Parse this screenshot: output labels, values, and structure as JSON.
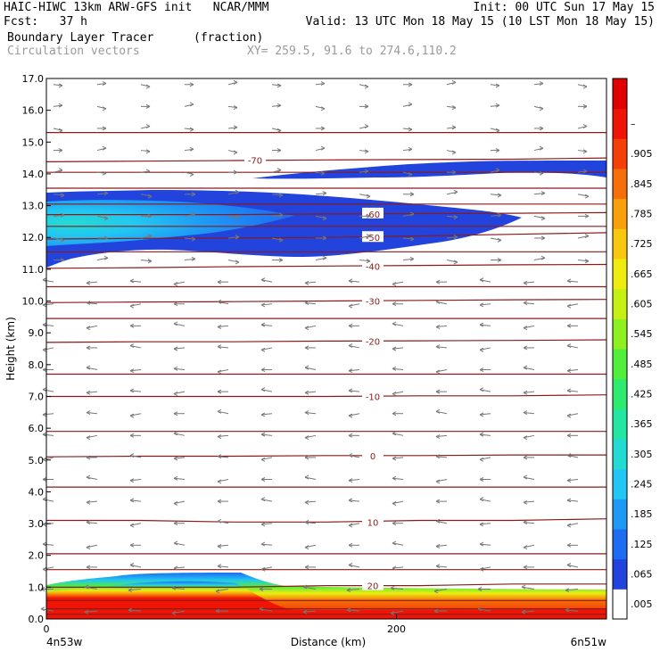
{
  "header": {
    "line1_left": "HAIC-HIWC 13km ARW-GFS init   NCAR/MMM",
    "line1_right": "Init: 00 UTC Sun 17 May 15",
    "line2_left": "Fcst:   37 h",
    "line2_right": "Valid: 13 UTC Mon 18 May 15 (10 LST Mon 18 May 15)",
    "line3_left": "Boundary Layer Tracer",
    "line3_units": "(fraction)",
    "line4_left": "Circulation vectors",
    "line4_xy": "XY= 259.5, 91.6 to 274.6,110.2"
  },
  "chart_data": {
    "type": "heatmap",
    "xlabel": "Distance (km)",
    "ylabel": "Height (km)",
    "xlim": [
      0,
      320
    ],
    "ylim": [
      0,
      17
    ],
    "x_ticks": [
      {
        "value": 0,
        "label": "0"
      },
      {
        "value": 200,
        "label": "200"
      }
    ],
    "x_endpoint_labels": {
      "left": "4n53w",
      "right": "6n51w"
    },
    "y_ticks": [
      {
        "value": 0,
        "label": "0.0"
      },
      {
        "value": 1,
        "label": "1.0"
      },
      {
        "value": 2,
        "label": "2.0"
      },
      {
        "value": 3,
        "label": "3.0"
      },
      {
        "value": 4,
        "label": "4.0"
      },
      {
        "value": 5,
        "label": "5.0"
      },
      {
        "value": 6,
        "label": "6.0"
      },
      {
        "value": 7,
        "label": "7.0"
      },
      {
        "value": 8,
        "label": "8.0"
      },
      {
        "value": 9,
        "label": "9.0"
      },
      {
        "value": 10,
        "label": "10.0"
      },
      {
        "value": 11,
        "label": "11.0"
      },
      {
        "value": 12,
        "label": "12.0"
      },
      {
        "value": 13,
        "label": "13.0"
      },
      {
        "value": 14,
        "label": "14.0"
      },
      {
        "value": 15,
        "label": "15.0"
      },
      {
        "value": 16,
        "label": "16.0"
      },
      {
        "value": 17,
        "label": "17.0"
      }
    ],
    "colorbar": {
      "labels": [
        ".005",
        ".065",
        ".125",
        ".185",
        ".245",
        ".305",
        ".365",
        ".425",
        ".485",
        ".545",
        ".605",
        ".665",
        ".725",
        ".785",
        ".845",
        ".905",
        "–"
      ],
      "colors": [
        "#ffffff",
        "#2244dd",
        "#1e6cf0",
        "#1e9af5",
        "#22c6f2",
        "#22dcd2",
        "#22e6a2",
        "#2eea6e",
        "#52ee3c",
        "#8ef020",
        "#c6f014",
        "#eeec10",
        "#f8c80e",
        "#f8a00c",
        "#f6700a",
        "#f44008",
        "#ee1406",
        "#e00000"
      ]
    },
    "temperature_contours": [
      {
        "value": "20",
        "heights": [
          1.0,
          1.0,
          1.0,
          1.05,
          1.05,
          1.1,
          1.1
        ]
      },
      {
        "value": "10",
        "heights": [
          3.1,
          3.1,
          3.05,
          3.05,
          3.1,
          3.1,
          3.15
        ]
      },
      {
        "value": "0",
        "heights": [
          5.1,
          5.12,
          5.12,
          5.14,
          5.14,
          5.16,
          5.16
        ]
      },
      {
        "value": "-10",
        "heights": [
          7.0,
          7.0,
          7.0,
          7.0,
          7.02,
          7.02,
          7.05
        ]
      },
      {
        "value": "-20",
        "heights": [
          8.7,
          8.72,
          8.72,
          8.74,
          8.75,
          8.76,
          8.78
        ]
      },
      {
        "value": "-30",
        "heights": [
          9.95,
          9.97,
          9.98,
          10.0,
          10.02,
          10.04,
          10.05
        ]
      },
      {
        "value": "-40",
        "heights": [
          11.03,
          11.05,
          11.08,
          11.1,
          11.12,
          11.14,
          11.15
        ]
      },
      {
        "value": "-50",
        "heights": [
          11.95,
          11.97,
          11.98,
          12.0,
          12.05,
          12.1,
          12.15
        ]
      },
      {
        "value": "-60",
        "heights": [
          12.72,
          12.72,
          12.72,
          12.74,
          12.75,
          12.76,
          12.78
        ]
      },
      {
        "value": "-70",
        "heights": [
          14.38,
          14.4,
          14.42,
          14.44,
          14.45,
          14.46,
          14.5
        ]
      }
    ],
    "extra_contour_heights": [
      0.15,
      0.32,
      0.58,
      1.55,
      2.05,
      4.15,
      5.9,
      7.7,
      9.45,
      10.45,
      11.55,
      12.35,
      13.05,
      13.55,
      14.05,
      15.3
    ]
  }
}
